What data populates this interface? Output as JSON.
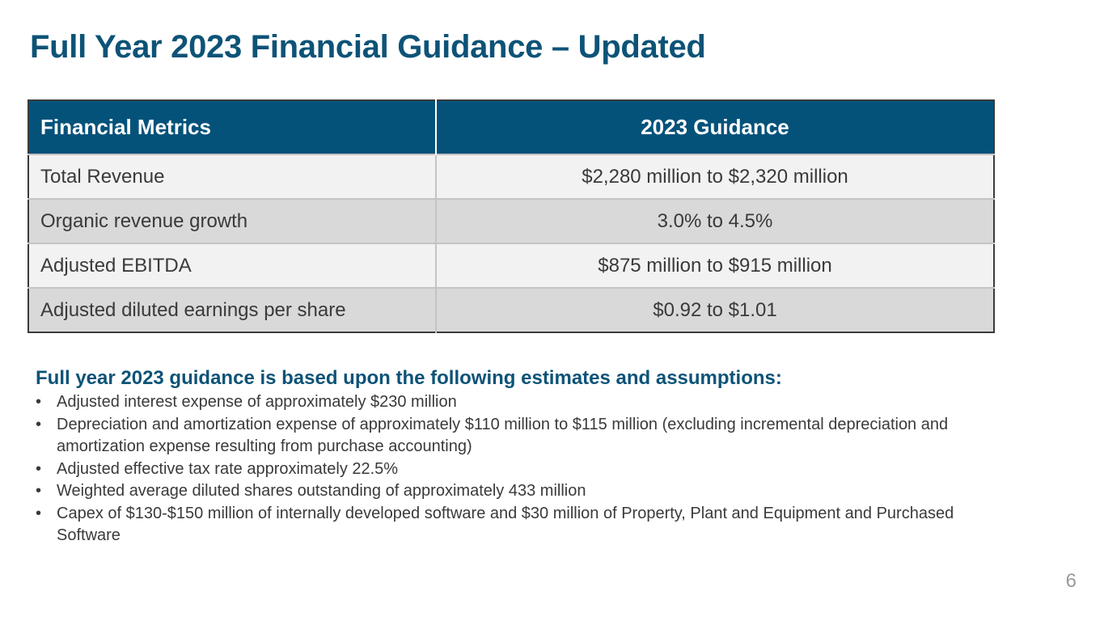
{
  "slide": {
    "title": "Full Year 2023 Financial Guidance – Updated",
    "page_number": "6"
  },
  "table": {
    "headers": {
      "metric": "Financial Metrics",
      "guidance": "2023 Guidance"
    },
    "rows": [
      {
        "metric": "Total Revenue",
        "value": "$2,280 million to $2,320 million"
      },
      {
        "metric": "Organic revenue growth",
        "value": "3.0% to 4.5%"
      },
      {
        "metric": "Adjusted EBITDA",
        "value": "$875 million to $915 million"
      },
      {
        "metric": "Adjusted diluted earnings per share",
        "value": "$0.92 to $1.01"
      }
    ]
  },
  "assumptions": {
    "heading": "Full year 2023 guidance is based upon the following estimates and assumptions:",
    "bullet": "•",
    "items": [
      "Adjusted interest expense of approximately $230 million",
      "Depreciation and amortization expense of approximately $110 million to $115 million (excluding incremental depreciation and amortization expense resulting from purchase accounting)",
      "Adjusted effective tax rate approximately 22.5%",
      "Weighted average diluted shares outstanding of approximately 433 million",
      "Capex of $130-$150 million of internally developed software and $30 million of Property, Plant and Equipment and Purchased Software"
    ]
  },
  "colors": {
    "title": "#0d5377",
    "table_header_bg": "#04527a",
    "row_light": "#f2f2f2",
    "row_dark": "#d9d9d9"
  }
}
